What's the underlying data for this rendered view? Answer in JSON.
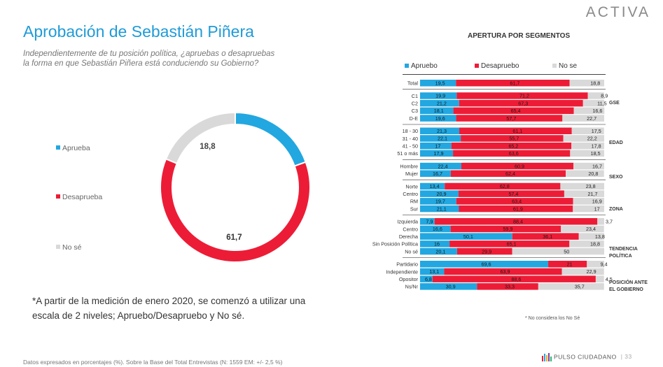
{
  "brand": "ACTIVA",
  "title": "Aprobación de Sebastián Piñera",
  "subtitle": "Independientemente de tu posición política, ¿apruebas o desapruebas la forma en que Sebastián Piñera está conduciendo su Gobierno?",
  "note": "*A partir de la medición de enero 2020, se comenzó a utilizar una escala de 2 niveles; Apruebo/Desapruebo y No sé.",
  "footer": "Datos expresados en porcentajes (%). Sobre la Base del Total Entrevistas (N: 1559  EM: +/- 2,5 %)",
  "pulso": "PULSO CIUDADANO",
  "page": "33",
  "colors": {
    "aprueba": "#22a7e0",
    "desaprueba": "#ed1c36",
    "nose": "#d9d9d9"
  },
  "donut_legend": [
    "Aprueba",
    "Desaprueba",
    "No sé"
  ],
  "segments_legend": [
    "Apruebo",
    "Desapruebo",
    "No se"
  ],
  "segments_note": "* No considera los No Sé",
  "chart_data": [
    {
      "type": "pie",
      "categories": [
        "Aprueba",
        "Desaprueba",
        "No sé"
      ],
      "values": [
        19.5,
        61.7,
        18.8
      ],
      "labels": [
        "19,5",
        "61,7",
        "18,8"
      ],
      "donut": true
    },
    {
      "type": "bar",
      "orientation": "horizontal",
      "stacked": true,
      "title": "APERTURA POR SEGMENTOS",
      "series_names": [
        "Apruebo",
        "Desapruebo",
        "No se"
      ],
      "groups": [
        {
          "name": "",
          "rows": [
            {
              "label": "Total",
              "values": [
                19.5,
                61.7,
                18.8
              ],
              "text": [
                "19,5",
                "61,7",
                "18,8"
              ]
            }
          ]
        },
        {
          "name": "GSE",
          "rows": [
            {
              "label": "C1",
              "values": [
                19.9,
                71.2,
                8.9
              ],
              "text": [
                "19,9",
                "71,2",
                "8,9"
              ]
            },
            {
              "label": "C2",
              "values": [
                21.2,
                67.3,
                11.5
              ],
              "text": [
                "21,2",
                "67,3",
                "11,5"
              ]
            },
            {
              "label": "C3",
              "values": [
                18.1,
                65.4,
                16.6
              ],
              "text": [
                "18,1",
                "65,4",
                "16,6"
              ]
            },
            {
              "label": "D-E",
              "values": [
                19.6,
                57.7,
                22.7
              ],
              "text": [
                "19,6",
                "57,7",
                "22,7"
              ]
            }
          ]
        },
        {
          "name": "EDAD",
          "rows": [
            {
              "label": "18 - 30",
              "values": [
                21.3,
                61.1,
                17.5
              ],
              "text": [
                "21,3",
                "61,1",
                "17,5"
              ]
            },
            {
              "label": "31 - 40",
              "values": [
                22.1,
                55.7,
                22.2
              ],
              "text": [
                "22,1",
                "55,7",
                "22,2"
              ]
            },
            {
              "label": "41 - 50",
              "values": [
                17,
                65.2,
                17.8
              ],
              "text": [
                "17",
                "65,2",
                "17,8"
              ]
            },
            {
              "label": "51 o más",
              "values": [
                17.9,
                63.6,
                18.5
              ],
              "text": [
                "17,9",
                "63,6",
                "18,5"
              ]
            }
          ]
        },
        {
          "name": "SEXO",
          "rows": [
            {
              "label": "Hombre",
              "values": [
                22.4,
                60.9,
                16.7
              ],
              "text": [
                "22,4",
                "60,9",
                "16,7"
              ]
            },
            {
              "label": "Mujer",
              "values": [
                16.7,
                62.4,
                20.8
              ],
              "text": [
                "16,7",
                "62,4",
                "20,8"
              ]
            }
          ]
        },
        {
          "name": "ZONA",
          "rows": [
            {
              "label": "Norte",
              "values": [
                13.4,
                62.8,
                23.8
              ],
              "text": [
                "13,4",
                "62,8",
                "23,8"
              ]
            },
            {
              "label": "Centro",
              "values": [
                20.9,
                57.4,
                21.7
              ],
              "text": [
                "20,9",
                "57,4",
                "21,7"
              ]
            },
            {
              "label": "RM",
              "values": [
                19.7,
                63.4,
                16.9
              ],
              "text": [
                "19,7",
                "63,4",
                "16,9"
              ]
            },
            {
              "label": "Sur",
              "values": [
                21.1,
                61.9,
                17
              ],
              "text": [
                "21,1",
                "61,9",
                "17"
              ]
            }
          ]
        },
        {
          "name": "TENDENCIA POLÍTICA",
          "rows": [
            {
              "label": "Izquierda",
              "values": [
                7.9,
                88.4,
                3.7
              ],
              "text": [
                "7,9",
                "88,4",
                "3,7"
              ]
            },
            {
              "label": "Centro",
              "values": [
                16.6,
                59.9,
                23.4
              ],
              "text": [
                "16,6",
                "59,9",
                "23,4"
              ]
            },
            {
              "label": "Derecha",
              "values": [
                50.1,
                36.1,
                13.8
              ],
              "text": [
                "50,1",
                "36,1",
                "13,8"
              ]
            },
            {
              "label": "Sin Posición Política",
              "values": [
                16,
                65.1,
                18.8
              ],
              "text": [
                "16",
                "65,1",
                "18,8"
              ]
            },
            {
              "label": "No sé",
              "values": [
                20.1,
                29.9,
                50
              ],
              "text": [
                "20,1",
                "29,9",
                "50"
              ]
            }
          ]
        },
        {
          "name": "POSICIÓN ANTE EL GOBIERNO",
          "rows": [
            {
              "label": "Partidario",
              "values": [
                69.6,
                21,
                9.4
              ],
              "text": [
                "69,6",
                "21",
                "9,4"
              ]
            },
            {
              "label": "Independiente",
              "values": [
                13.1,
                63.9,
                22.9
              ],
              "text": [
                "13,1",
                "63,9",
                "22,9"
              ]
            },
            {
              "label": "Opositor",
              "values": [
                6.8,
                88.6,
                4.5
              ],
              "text": [
                "6,8",
                "88,6",
                "4,5"
              ]
            },
            {
              "label": "Ns/Nr",
              "values": [
                30.9,
                33.3,
                35.7
              ],
              "text": [
                "30,9",
                "33,3",
                "35,7"
              ]
            }
          ]
        }
      ]
    }
  ]
}
